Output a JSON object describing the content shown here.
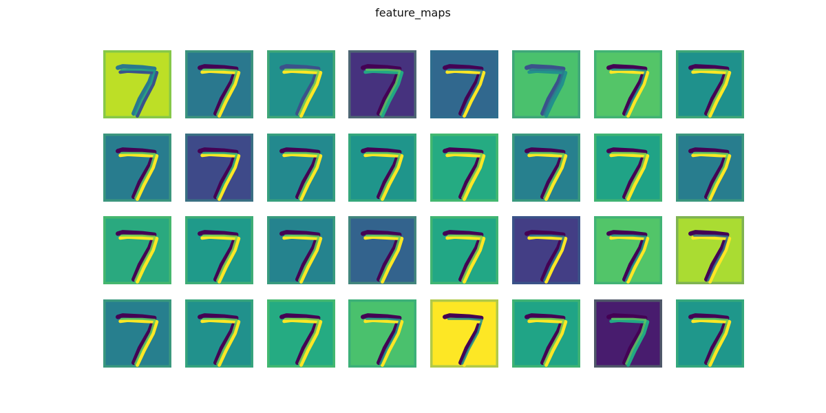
{
  "figure": {
    "title": "feature_maps",
    "rows": 4,
    "cols": 8,
    "colormap": "viridis",
    "digit": "7",
    "maps": [
      {
        "row": 0,
        "col": 0,
        "bg": "#bddf26",
        "dark": "#2a788e",
        "light": "#3b528b",
        "light2": "#1f9e89"
      },
      {
        "row": 0,
        "col": 1,
        "bg": "#2a788e",
        "dark": "#440154",
        "light": "#fde725",
        "light2": "#5ec962"
      },
      {
        "row": 0,
        "col": 2,
        "bg": "#21918c",
        "dark": "#3b528b",
        "light": "#fde725",
        "light2": "#7ad151"
      },
      {
        "row": 0,
        "col": 3,
        "bg": "#46327e",
        "dark": "#440154",
        "light": "#22a884",
        "light2": "#5ec962"
      },
      {
        "row": 0,
        "col": 4,
        "bg": "#31688e",
        "dark": "#440154",
        "light": "#fde725",
        "light2": "#2a788e"
      },
      {
        "row": 0,
        "col": 5,
        "bg": "#4ac16d",
        "dark": "#3b528b",
        "light": "#21918c",
        "light2": "#2a788e"
      },
      {
        "row": 0,
        "col": 6,
        "bg": "#54c568",
        "dark": "#440154",
        "light": "#fde725",
        "light2": "#21918c"
      },
      {
        "row": 0,
        "col": 7,
        "bg": "#1f918c",
        "dark": "#440154",
        "light": "#fde725",
        "light2": "#7ad151"
      },
      {
        "row": 1,
        "col": 0,
        "bg": "#287c8e",
        "dark": "#440154",
        "light": "#fde725",
        "light2": "#5ec962"
      },
      {
        "row": 1,
        "col": 1,
        "bg": "#3e4a89",
        "dark": "#440154",
        "light": "#fde725",
        "light2": "#35b779"
      },
      {
        "row": 1,
        "col": 2,
        "bg": "#23898e",
        "dark": "#440154",
        "light": "#fde725",
        "light2": "#5ec962"
      },
      {
        "row": 1,
        "col": 3,
        "bg": "#1f958b",
        "dark": "#440154",
        "light": "#fde725",
        "light2": "#5ec962"
      },
      {
        "row": 1,
        "col": 4,
        "bg": "#25ab82",
        "dark": "#440154",
        "light": "#fde725",
        "light2": "#7ad151"
      },
      {
        "row": 1,
        "col": 5,
        "bg": "#27808e",
        "dark": "#440154",
        "light": "#fde725",
        "light2": "#5ec962"
      },
      {
        "row": 1,
        "col": 6,
        "bg": "#20a386",
        "dark": "#440154",
        "light": "#fde725",
        "light2": "#7ad151"
      },
      {
        "row": 1,
        "col": 7,
        "bg": "#287d8e",
        "dark": "#440154",
        "light": "#fde725",
        "light2": "#5ec962"
      },
      {
        "row": 2,
        "col": 0,
        "bg": "#2aa97f",
        "dark": "#440154",
        "light": "#fde725",
        "light2": "#7ad151"
      },
      {
        "row": 2,
        "col": 1,
        "bg": "#1f9a8a",
        "dark": "#440154",
        "light": "#fde725",
        "light2": "#7ad151"
      },
      {
        "row": 2,
        "col": 2,
        "bg": "#25838e",
        "dark": "#440154",
        "light": "#fde725",
        "light2": "#5ec962"
      },
      {
        "row": 2,
        "col": 3,
        "bg": "#33638d",
        "dark": "#440154",
        "light": "#fde725",
        "light2": "#5ec962"
      },
      {
        "row": 2,
        "col": 4,
        "bg": "#22a785",
        "dark": "#440154",
        "light": "#fde725",
        "light2": "#7ad151"
      },
      {
        "row": 2,
        "col": 5,
        "bg": "#433e85",
        "dark": "#440154",
        "light": "#fde725",
        "light2": "#2a788e"
      },
      {
        "row": 2,
        "col": 6,
        "bg": "#52c569",
        "dark": "#440154",
        "light": "#fde725",
        "light2": "#21918c"
      },
      {
        "row": 2,
        "col": 7,
        "bg": "#aadc32",
        "dark": "#440154",
        "light": "#fde725",
        "light2": "#31688e"
      },
      {
        "row": 3,
        "col": 0,
        "bg": "#277f8e",
        "dark": "#440154",
        "light": "#fde725",
        "light2": "#5ec962"
      },
      {
        "row": 3,
        "col": 1,
        "bg": "#21918c",
        "dark": "#440154",
        "light": "#fde725",
        "light2": "#5ec962"
      },
      {
        "row": 3,
        "col": 2,
        "bg": "#25ab82",
        "dark": "#440154",
        "light": "#fde725",
        "light2": "#7ad151"
      },
      {
        "row": 3,
        "col": 3,
        "bg": "#4ac16d",
        "dark": "#440154",
        "light": "#fde725",
        "light2": "#21918c"
      },
      {
        "row": 3,
        "col": 4,
        "bg": "#fde725",
        "dark": "#440154",
        "light": "#fde725",
        "light2": "#21918c"
      },
      {
        "row": 3,
        "col": 5,
        "bg": "#20a486",
        "dark": "#440154",
        "light": "#fde725",
        "light2": "#7ad151"
      },
      {
        "row": 3,
        "col": 6,
        "bg": "#481c6e",
        "dark": "#440154",
        "light": "#22a884",
        "light2": "#5ec962"
      },
      {
        "row": 3,
        "col": 7,
        "bg": "#1f978b",
        "dark": "#440154",
        "light": "#fde725",
        "light2": "#5ec962"
      }
    ]
  }
}
